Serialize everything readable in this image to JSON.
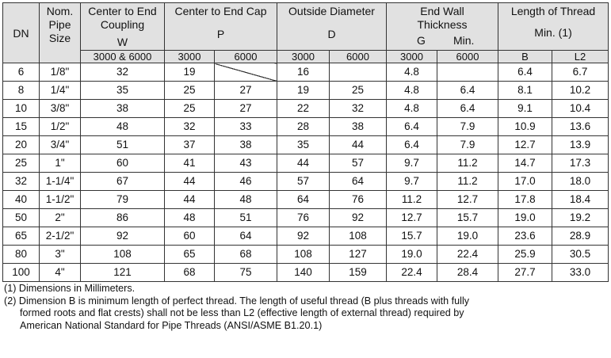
{
  "header": {
    "dn": "DN",
    "nom_line1": "Nom.",
    "nom_line2": "Pipe",
    "nom_line3": "Size",
    "w_line1": "Center to End",
    "w_line2": "Coupling",
    "w_letter": "W",
    "p_title": "Center to End Cap",
    "p_letter": "P",
    "d_title": "Outside Diameter",
    "d_letter": "D",
    "g_line1": "End Wall",
    "g_line2": "Thickness",
    "g_letter": "G",
    "g_min": "Min.",
    "thread_title": "Length of Thread",
    "thread_min": "Min. (1)"
  },
  "subheader": {
    "w_class": "3000 & 6000",
    "p_3000": "3000",
    "p_6000": "6000",
    "d_3000": "3000",
    "d_6000": "6000",
    "g_3000": "3000",
    "g_6000": "6000",
    "b": "B",
    "l2": "L2"
  },
  "rows": [
    {
      "dn": "6",
      "size": "1/8\"",
      "w": "32",
      "p3000": "19",
      "p6000": "",
      "d3000": "16",
      "d6000": "",
      "g3000": "4.8",
      "g6000": "",
      "b": "6.4",
      "l2": "6.7"
    },
    {
      "dn": "8",
      "size": "1/4\"",
      "w": "35",
      "p3000": "25",
      "p6000": "27",
      "d3000": "19",
      "d6000": "25",
      "g3000": "4.8",
      "g6000": "6.4",
      "b": "8.1",
      "l2": "10.2"
    },
    {
      "dn": "10",
      "size": "3/8\"",
      "w": "38",
      "p3000": "25",
      "p6000": "27",
      "d3000": "22",
      "d6000": "32",
      "g3000": "4.8",
      "g6000": "6.4",
      "b": "9.1",
      "l2": "10.4"
    },
    {
      "dn": "15",
      "size": "1/2\"",
      "w": "48",
      "p3000": "32",
      "p6000": "33",
      "d3000": "28",
      "d6000": "38",
      "g3000": "6.4",
      "g6000": "7.9",
      "b": "10.9",
      "l2": "13.6"
    },
    {
      "dn": "20",
      "size": "3/4\"",
      "w": "51",
      "p3000": "37",
      "p6000": "38",
      "d3000": "35",
      "d6000": "44",
      "g3000": "6.4",
      "g6000": "7.9",
      "b": "12.7",
      "l2": "13.9"
    },
    {
      "dn": "25",
      "size": "1\"",
      "w": "60",
      "p3000": "41",
      "p6000": "43",
      "d3000": "44",
      "d6000": "57",
      "g3000": "9.7",
      "g6000": "11.2",
      "b": "14.7",
      "l2": "17.3"
    },
    {
      "dn": "32",
      "size": "1-1/4\"",
      "w": "67",
      "p3000": "44",
      "p6000": "46",
      "d3000": "57",
      "d6000": "64",
      "g3000": "9.7",
      "g6000": "11.2",
      "b": "17.0",
      "l2": "18.0"
    },
    {
      "dn": "40",
      "size": "1-1/2\"",
      "w": "79",
      "p3000": "44",
      "p6000": "48",
      "d3000": "64",
      "d6000": "76",
      "g3000": "11.2",
      "g6000": "12.7",
      "b": "17.8",
      "l2": "18.4"
    },
    {
      "dn": "50",
      "size": "2\"",
      "w": "86",
      "p3000": "48",
      "p6000": "51",
      "d3000": "76",
      "d6000": "92",
      "g3000": "12.7",
      "g6000": "15.7",
      "b": "19.0",
      "l2": "19.2"
    },
    {
      "dn": "65",
      "size": "2-1/2\"",
      "w": "92",
      "p3000": "60",
      "p6000": "64",
      "d3000": "92",
      "d6000": "108",
      "g3000": "15.7",
      "g6000": "19.0",
      "b": "23.6",
      "l2": "28.9"
    },
    {
      "dn": "80",
      "size": "3\"",
      "w": "108",
      "p3000": "65",
      "p6000": "68",
      "d3000": "108",
      "d6000": "127",
      "g3000": "19.0",
      "g6000": "22.4",
      "b": "25.9",
      "l2": "30.5"
    },
    {
      "dn": "100",
      "size": "4\"",
      "w": "121",
      "p3000": "68",
      "p6000": "75",
      "d3000": "140",
      "d6000": "159",
      "g3000": "22.4",
      "g6000": "28.4",
      "b": "27.7",
      "l2": "33.0"
    }
  ],
  "notes": {
    "note1": "(1) Dimensions in Millimeters.",
    "note2_line1": "(2) Dimension B is minimum length of perfect thread.  The length of useful thread (B plus threads with fully",
    "note2_line2": "formed roots and flat crests) shall not be less than L2 (effective length of external thread) required by",
    "note2_line3": "American National Standard for Pipe Threads (ANSI/ASME B1.20.1)"
  }
}
